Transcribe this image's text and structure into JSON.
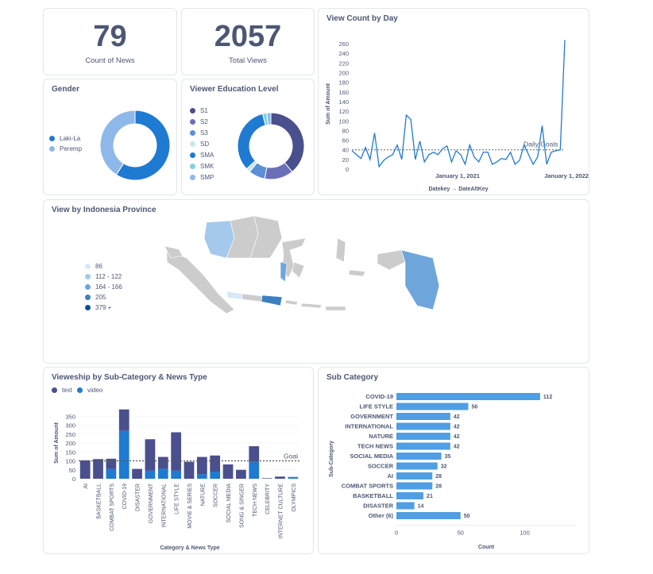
{
  "kpis": {
    "news": {
      "value": "79",
      "label": "Count of News"
    },
    "views": {
      "value": "2057",
      "label": "Total Views"
    }
  },
  "gender": {
    "title": "Gender",
    "legend": [
      {
        "label": "Laki-La",
        "color": "#1f7ad1"
      },
      {
        "label": "Peremp",
        "color": "#8fb8ea"
      }
    ],
    "chart_data": {
      "type": "pie",
      "labels": [
        "Laki-La",
        "Peremp"
      ],
      "values": [
        59,
        41
      ],
      "colors": [
        "#1f7ad1",
        "#8fb8ea"
      ]
    }
  },
  "education": {
    "title": "Viewer Education Level",
    "legend": [
      {
        "label": "S1",
        "color": "#4a4f8e"
      },
      {
        "label": "S2",
        "color": "#6a6fb8"
      },
      {
        "label": "S3",
        "color": "#5b8fd8"
      },
      {
        "label": "SD",
        "color": "#c7e6f5"
      },
      {
        "label": "SMA",
        "color": "#1f7ad1"
      },
      {
        "label": "SMK",
        "color": "#7ed3dc"
      },
      {
        "label": "SMP",
        "color": "#8fb8ea"
      }
    ],
    "chart_data": {
      "type": "pie",
      "labels": [
        "S1",
        "S2",
        "S3",
        "SD",
        "SMA",
        "SMK",
        "SMP"
      ],
      "values": [
        39,
        14,
        8,
        2,
        33,
        2,
        2
      ]
    }
  },
  "view_count": {
    "title": "View Count by Day",
    "goal_label": "Daily Goals",
    "chart_data": {
      "type": "line",
      "xlabel": "Datekey → DateAltKey",
      "ylabel": "Sum of Amount",
      "x_ticks": [
        "January 1, 2021",
        "January 1, 2022"
      ],
      "y_ticks": [
        0,
        20,
        40,
        60,
        80,
        100,
        120,
        140,
        160,
        180,
        200,
        220,
        240,
        260
      ],
      "ylim": [
        0,
        270
      ],
      "goal": 40,
      "values": [
        38,
        30,
        22,
        45,
        20,
        75,
        5,
        18,
        25,
        30,
        50,
        20,
        112,
        103,
        20,
        58,
        15,
        30,
        35,
        30,
        42,
        48,
        15,
        38,
        30,
        10,
        50,
        25,
        15,
        35,
        35,
        10,
        15,
        22,
        20,
        35,
        10,
        18,
        50,
        30,
        10,
        25,
        90,
        10,
        35,
        38,
        40,
        268
      ]
    }
  },
  "province": {
    "title": "View by Indonesia Province",
    "legend": [
      {
        "label": "86",
        "color": "#d8e8f6"
      },
      {
        "label": "112 - 122",
        "color": "#a5c9ec"
      },
      {
        "label": "164 - 166",
        "color": "#6ea6dc"
      },
      {
        "label": "205",
        "color": "#3d7fc2"
      },
      {
        "label": "379 +",
        "color": "#0d4f94"
      }
    ]
  },
  "viewership": {
    "title": "Vieweship by Sub-Category & News Type",
    "legend": [
      {
        "label": "text",
        "color": "#4a4f8e"
      },
      {
        "label": "video",
        "color": "#1f7ad1"
      }
    ],
    "goal_label": "Goal",
    "chart_data": {
      "type": "bar",
      "stacked": true,
      "xlabel": "Category & News Type",
      "ylabel": "Sum of Amount",
      "ylim": [
        0,
        400
      ],
      "y_ticks": [
        0,
        50,
        100,
        150,
        200,
        250,
        300,
        350
      ],
      "goal": 100,
      "categories": [
        "AI",
        "BASKETBALL",
        "COMBAT SPORTS",
        "COVID-19",
        "DISASTER",
        "GOVERNMENT",
        "INTERNATIONAL",
        "LIFE STYLE",
        "MOVIE & SERIES",
        "NATURE",
        "SOCCER",
        "SOCIAL MEDIA",
        "SONG & SINGER",
        "TECH NEWS",
        "CELEBRITY",
        "INTERNET CULTURE",
        "OLYMPICS"
      ],
      "series": [
        {
          "name": "video",
          "values": [
            0,
            0,
            55,
            268,
            0,
            45,
            55,
            45,
            0,
            25,
            40,
            0,
            0,
            95,
            0,
            0,
            8
          ]
        },
        {
          "name": "text",
          "values": [
            103,
            110,
            57,
            120,
            55,
            176,
            67,
            215,
            95,
            97,
            90,
            80,
            50,
            87,
            3,
            12,
            2
          ]
        }
      ]
    }
  },
  "subcategory": {
    "title": "Sub Category",
    "chart_data": {
      "type": "bar",
      "orientation": "horizontal",
      "xlabel": "Count",
      "ylabel": "Sub-Category",
      "xlim": [
        0,
        130
      ],
      "x_ticks": [
        0,
        50,
        100
      ],
      "categories": [
        "COVID-19",
        "LIFE STYLE",
        "GOVERNMENT",
        "INTERNATIONAL",
        "NATURE",
        "TECH NEWS",
        "SOCIAL MEDIA",
        "SOCCER",
        "AI",
        "COMBAT SPORTS",
        "BASKETBALL",
        "DISASTER",
        "Other (6)"
      ],
      "values": [
        112,
        56,
        42,
        42,
        42,
        42,
        35,
        32,
        28,
        28,
        21,
        14,
        50
      ],
      "color": "#509ee3"
    }
  }
}
